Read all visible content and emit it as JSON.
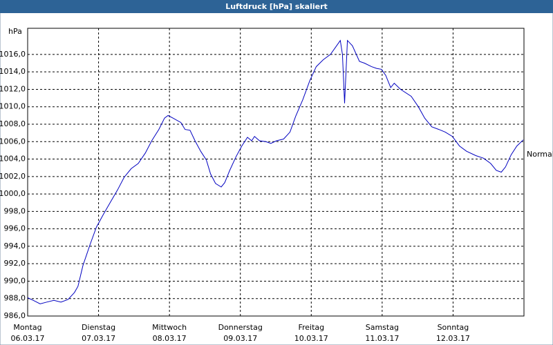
{
  "chart_data": {
    "type": "line",
    "title": "Luftdruck [hPa] skaliert",
    "y_unit": "hPa",
    "normal": {
      "label": "Normal",
      "value": 1004.5
    },
    "xlim": [
      0,
      7
    ],
    "xticks": [
      {
        "value": 0,
        "label": "Montag"
      },
      {
        "value": 1,
        "label": "Dienstag"
      },
      {
        "value": 2,
        "label": "Mittwoch"
      },
      {
        "value": 3,
        "label": "Donnerstag"
      },
      {
        "value": 4,
        "label": "Freitag"
      },
      {
        "value": 5,
        "label": "Samstag"
      },
      {
        "value": 6,
        "label": "Sonntag"
      }
    ],
    "xtick_dates": [
      "06.03.17",
      "07.03.17",
      "08.03.17",
      "09.03.17",
      "10.03.17",
      "11.03.17",
      "12.03.17"
    ],
    "ylim": [
      986,
      1019
    ],
    "yticks": [
      {
        "value": 986,
        "label": "986,0"
      },
      {
        "value": 988,
        "label": "988,0"
      },
      {
        "value": 990,
        "label": "990,0"
      },
      {
        "value": 992,
        "label": "992,0"
      },
      {
        "value": 994,
        "label": "994,0"
      },
      {
        "value": 996,
        "label": "996,0"
      },
      {
        "value": 998,
        "label": "998,0"
      },
      {
        "value": 1000,
        "label": "1000,0"
      },
      {
        "value": 1002,
        "label": "1002,0"
      },
      {
        "value": 1004,
        "label": "1004,0"
      },
      {
        "value": 1006,
        "label": "1006,0"
      },
      {
        "value": 1008,
        "label": "1008,0"
      },
      {
        "value": 1010,
        "label": "1010,0"
      },
      {
        "value": 1012,
        "label": "1012,0"
      },
      {
        "value": 1014,
        "label": "1014,0"
      },
      {
        "value": 1016,
        "label": "1016,0"
      }
    ],
    "grid": true,
    "series": [
      {
        "name": "Luftdruck",
        "color": "#0000c0",
        "x": [
          0,
          0.08,
          0.175,
          0.27,
          0.37,
          0.47,
          0.57,
          0.66,
          0.71,
          0.78,
          0.88,
          0.97,
          1.07,
          1.17,
          1.27,
          1.36,
          1.46,
          1.56,
          1.66,
          1.75,
          1.85,
          1.93,
          1.98,
          2.05,
          2.16,
          2.22,
          2.29,
          2.36,
          2.44,
          2.52,
          2.58,
          2.65,
          2.73,
          2.78,
          2.85,
          2.94,
          3.02,
          3.1,
          3.16,
          3.2,
          3.27,
          3.36,
          3.43,
          3.51,
          3.61,
          3.7,
          3.78,
          3.88,
          3.98,
          4.07,
          4.17,
          4.27,
          4.34,
          4.41,
          4.44,
          4.47,
          4.51,
          4.58,
          4.68,
          4.75,
          4.85,
          4.92,
          4.99,
          5.05,
          5.12,
          5.17,
          5.26,
          5.41,
          5.51,
          5.6,
          5.7,
          5.8,
          5.89,
          5.99,
          6.09,
          6.19,
          6.32,
          6.43,
          6.53,
          6.61,
          6.68,
          6.74,
          6.82,
          6.9,
          6.99
        ],
        "values": [
          988.1,
          987.8,
          987.4,
          987.6,
          987.8,
          987.6,
          987.9,
          988.7,
          989.4,
          991.8,
          994.2,
          996.2,
          997.7,
          999.1,
          1000.5,
          1001.9,
          1002.9,
          1003.5,
          1004.7,
          1006.1,
          1007.4,
          1008.7,
          1009.0,
          1008.7,
          1008.2,
          1007.4,
          1007.3,
          1006.1,
          1004.9,
          1003.9,
          1002.3,
          1001.2,
          1000.8,
          1001.3,
          1002.7,
          1004.3,
          1005.5,
          1006.5,
          1006.1,
          1006.6,
          1006.1,
          1006.0,
          1005.8,
          1006.1,
          1006.3,
          1007.1,
          1008.9,
          1010.8,
          1013.0,
          1014.6,
          1015.4,
          1016.0,
          1016.8,
          1017.6,
          1016.0,
          1010.4,
          1017.6,
          1017.0,
          1015.2,
          1015.0,
          1014.6,
          1014.4,
          1014.3,
          1013.6,
          1012.2,
          1012.7,
          1012.0,
          1011.2,
          1010.0,
          1008.7,
          1007.7,
          1007.4,
          1007.1,
          1006.6,
          1005.5,
          1004.9,
          1004.4,
          1004.1,
          1003.5,
          1002.7,
          1002.5,
          1003.1,
          1004.5,
          1005.5,
          1006.2
        ]
      }
    ]
  }
}
